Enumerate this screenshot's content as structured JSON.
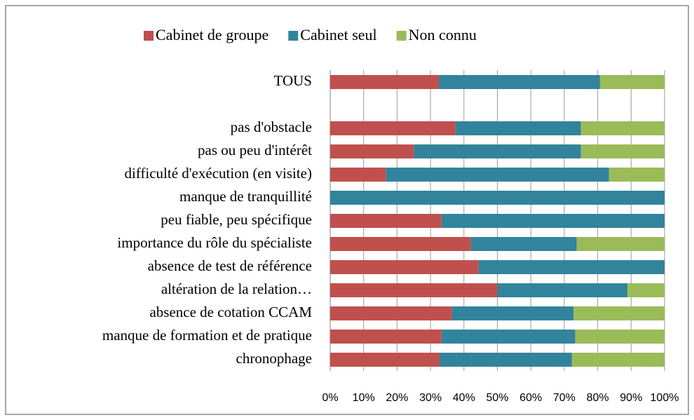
{
  "chart_data": {
    "type": "stacked_barh",
    "categories": [
      "TOUS",
      null,
      "pas d'obstacle",
      "pas ou peu d'intérêt",
      "difficulté d'exécution (en visite)",
      "manque de tranquillité",
      "peu fiable, peu spécifique",
      "importance du rôle du spécialiste",
      "absence de test de référence",
      "altération de la relation…",
      "absence de cotation CCAM",
      "manque de formation et de pratique",
      "chronophage"
    ],
    "series": [
      {
        "name": "Cabinet de groupe",
        "color": "#c0504d",
        "values": [
          32.5,
          null,
          37.5,
          25,
          16.7,
          0,
          33.3,
          42.1,
          44.4,
          50,
          36.4,
          33.3,
          32.7
        ]
      },
      {
        "name": "Cabinet seul",
        "color": "#31849b",
        "values": [
          48.2,
          null,
          37.5,
          50,
          66.7,
          100,
          66.7,
          31.6,
          55.6,
          38.9,
          36.4,
          40,
          39.6
        ]
      },
      {
        "name": "Non connu",
        "color": "#9bbb59",
        "values": [
          19.3,
          null,
          25,
          25,
          16.6,
          0,
          0,
          26.3,
          0,
          11.1,
          27.3,
          26.7,
          27.7
        ]
      }
    ],
    "xlim": [
      0,
      100
    ],
    "xticks": [
      {
        "value": 0,
        "label": "0%"
      },
      {
        "value": 10,
        "label": "10%"
      },
      {
        "value": 20,
        "label": "20%"
      },
      {
        "value": 30,
        "label": "30%"
      },
      {
        "value": 40,
        "label": "40%"
      },
      {
        "value": 50,
        "label": "50%"
      },
      {
        "value": 60,
        "label": "60%"
      },
      {
        "value": 70,
        "label": "70%"
      },
      {
        "value": 80,
        "label": "80%"
      },
      {
        "value": 90,
        "label": "90%"
      },
      {
        "value": 100,
        "label": "100%"
      }
    ],
    "grid": true,
    "legend": "top"
  }
}
